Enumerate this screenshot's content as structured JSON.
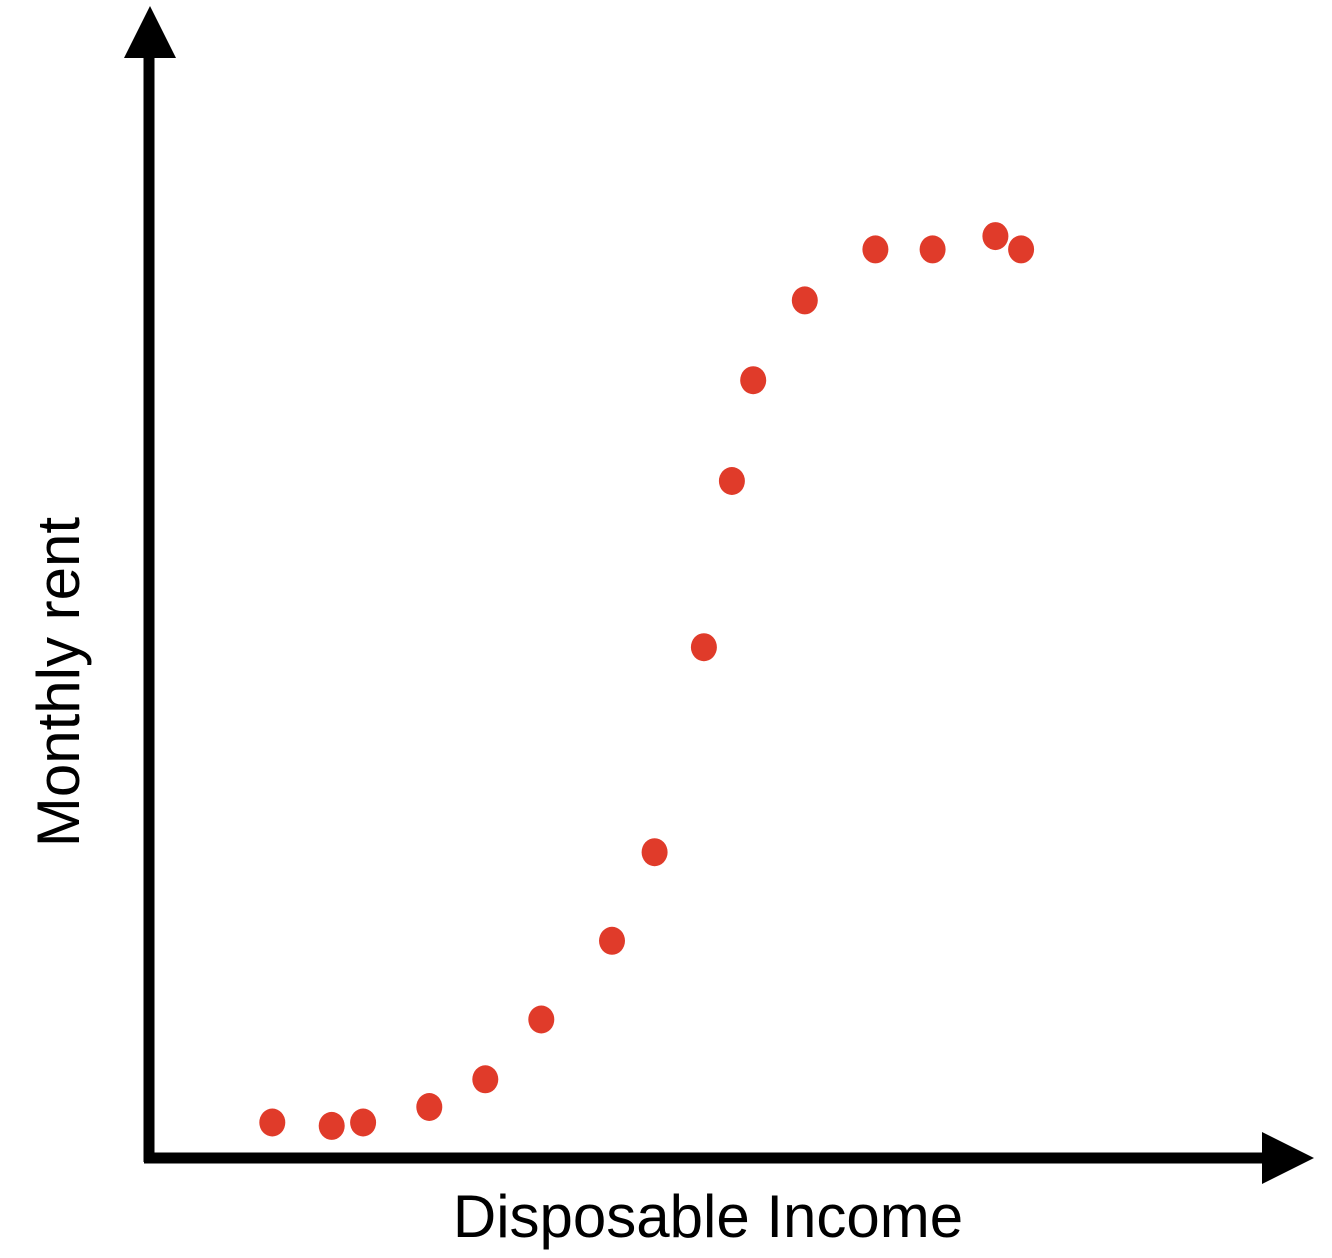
{
  "chart_data": {
    "type": "scatter",
    "title": "",
    "xlabel": "Disposable Income",
    "ylabel": "Monthly rent",
    "xlim": [
      0,
      100
    ],
    "ylim": [
      0,
      100
    ],
    "grid": false,
    "ticks": false,
    "point_color": "#E03B2A",
    "axis_color": "#000000",
    "series": [
      {
        "points": [
          {
            "x": 11.0,
            "y": 3.2
          },
          {
            "x": 16.3,
            "y": 2.9
          },
          {
            "x": 19.1,
            "y": 3.2
          },
          {
            "x": 25.0,
            "y": 4.6
          },
          {
            "x": 30.0,
            "y": 7.1
          },
          {
            "x": 35.0,
            "y": 12.5
          },
          {
            "x": 41.3,
            "y": 19.6
          },
          {
            "x": 45.1,
            "y": 27.6
          },
          {
            "x": 49.5,
            "y": 46.1
          },
          {
            "x": 52.0,
            "y": 61.1
          },
          {
            "x": 53.9,
            "y": 70.2
          },
          {
            "x": 58.5,
            "y": 77.4
          },
          {
            "x": 64.8,
            "y": 82.0
          },
          {
            "x": 69.9,
            "y": 82.0
          },
          {
            "x": 75.5,
            "y": 83.2
          },
          {
            "x": 77.8,
            "y": 82.0
          }
        ]
      }
    ]
  }
}
